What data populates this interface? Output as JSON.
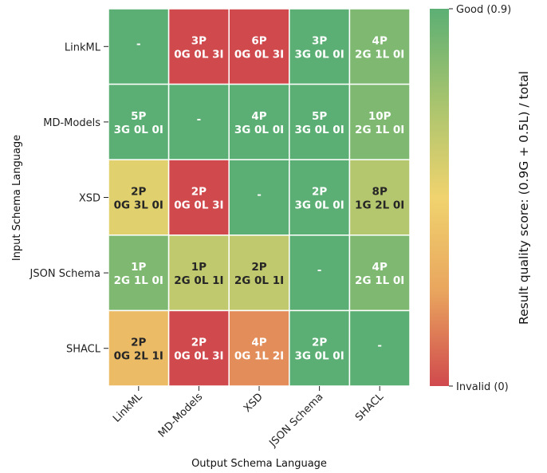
{
  "chart_data": {
    "type": "heatmap",
    "xlabel": "Output Schema Language",
    "ylabel": "Input Schema Language",
    "x_categories": [
      "LinkML",
      "MD-Models",
      "XSD",
      "JSON Schema",
      "SHACL"
    ],
    "y_categories": [
      "LinkML",
      "MD-Models",
      "XSD",
      "JSON Schema",
      "SHACL"
    ],
    "cells": [
      [
        {
          "score": 0.9,
          "line1": "-",
          "line2": ""
        },
        {
          "score": 0.0,
          "line1": "3P",
          "line2": "0G 0L 3I"
        },
        {
          "score": 0.0,
          "line1": "6P",
          "line2": "0G 0L 3I"
        },
        {
          "score": 0.9,
          "line1": "3P",
          "line2": "3G 0L 0I"
        },
        {
          "score": 0.8,
          "line1": "4P",
          "line2": "2G 1L 0I"
        }
      ],
      [
        {
          "score": 0.9,
          "line1": "5P",
          "line2": "3G 0L 0I"
        },
        {
          "score": 0.9,
          "line1": "-",
          "line2": ""
        },
        {
          "score": 0.9,
          "line1": "4P",
          "line2": "3G 0L 0I"
        },
        {
          "score": 0.9,
          "line1": "5P",
          "line2": "3G 0L 0I"
        },
        {
          "score": 0.8,
          "line1": "10P",
          "line2": "2G 1L 0I"
        }
      ],
      [
        {
          "score": 0.5,
          "line1": "2P",
          "line2": "0G 3L 0I"
        },
        {
          "score": 0.0,
          "line1": "2P",
          "line2": "0G 0L 3I"
        },
        {
          "score": 0.9,
          "line1": "-",
          "line2": ""
        },
        {
          "score": 0.9,
          "line1": "2P",
          "line2": "3G 0L 0I"
        },
        {
          "score": 0.633,
          "line1": "8P",
          "line2": "1G 2L 0I"
        }
      ],
      [
        {
          "score": 0.8,
          "line1": "1P",
          "line2": "2G 1L 0I"
        },
        {
          "score": 0.6,
          "line1": "1P",
          "line2": "2G 0L 1I"
        },
        {
          "score": 0.6,
          "line1": "2P",
          "line2": "2G 0L 1I"
        },
        {
          "score": 0.9,
          "line1": "-",
          "line2": ""
        },
        {
          "score": 0.8,
          "line1": "4P",
          "line2": "2G 1L 0I"
        }
      ],
      [
        {
          "score": 0.333,
          "line1": "2P",
          "line2": "0G 2L 1I"
        },
        {
          "score": 0.0,
          "line1": "2P",
          "line2": "0G 0L 3I"
        },
        {
          "score": 0.167,
          "line1": "4P",
          "line2": "0G 1L 2I"
        },
        {
          "score": 0.9,
          "line1": "2P",
          "line2": "3G 0L 0I"
        },
        {
          "score": 0.9,
          "line1": "-",
          "line2": ""
        }
      ]
    ],
    "colorbar": {
      "label": "Result quality score: (0.9G + 0.5L) / total",
      "min": 0,
      "max": 0.9,
      "min_label": "Invalid (0)",
      "max_label": "Good (0.9)",
      "colors": [
        "#d0494d",
        "#e9a55e",
        "#f0d36e",
        "#a8c46e",
        "#5caf74"
      ]
    },
    "light_text_color": "#ffffff",
    "dark_text_color": "#262626",
    "grid_line_color": "#ffffff"
  }
}
